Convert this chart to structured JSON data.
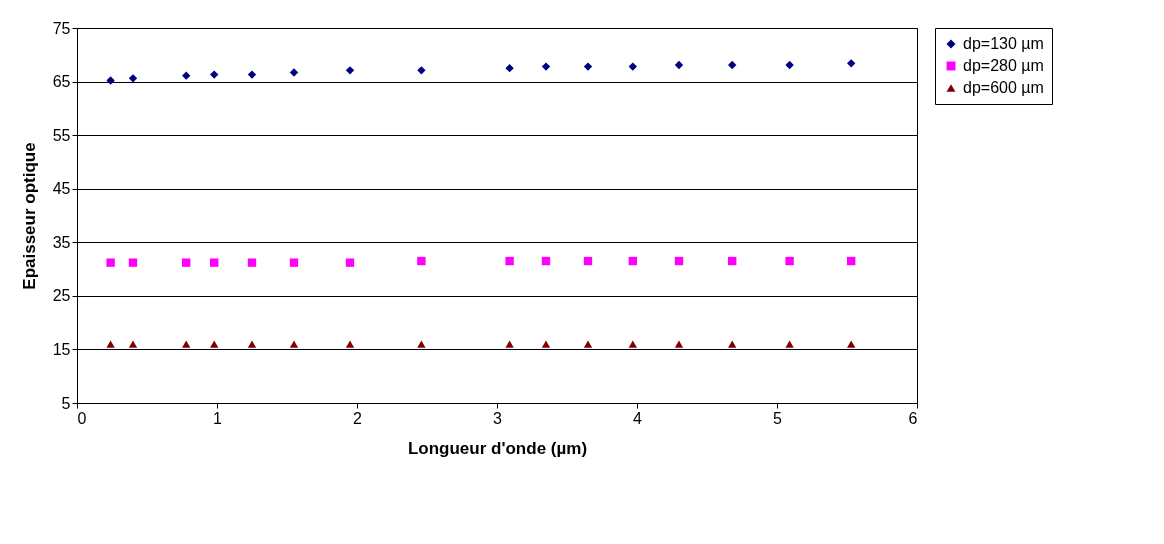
{
  "chart_data": {
    "type": "scatter",
    "xlabel": "Longueur d'onde (µm)",
    "ylabel": "Epaisseur optique",
    "x": [
      0.24,
      0.4,
      0.78,
      0.98,
      1.25,
      1.55,
      1.95,
      2.46,
      3.09,
      3.35,
      3.65,
      3.97,
      4.3,
      4.68,
      5.09,
      5.53
    ],
    "series": [
      {
        "name": "dp=130 µm",
        "color": "#000080",
        "marker": "diamond",
        "values": [
          65.2,
          65.6,
          66.1,
          66.3,
          66.3,
          66.7,
          67.1,
          67.1,
          67.5,
          67.8,
          67.8,
          67.8,
          68.1,
          68.1,
          68.1,
          68.4
        ]
      },
      {
        "name": "dp=280 µm",
        "color": "#ff00ff",
        "marker": "square",
        "values": [
          31.2,
          31.2,
          31.2,
          31.2,
          31.2,
          31.2,
          31.2,
          31.5,
          31.5,
          31.5,
          31.5,
          31.5,
          31.5,
          31.5,
          31.5,
          31.5
        ]
      },
      {
        "name": "dp=600 µm",
        "color": "#800000",
        "marker": "triangle",
        "values": [
          16,
          16,
          16,
          16,
          16,
          16,
          16,
          16,
          16,
          16,
          16,
          16,
          16,
          16,
          16,
          16
        ]
      }
    ],
    "xlim": [
      0,
      6
    ],
    "xticks": [
      0,
      1,
      2,
      3,
      4,
      5,
      6
    ],
    "ylim": [
      5,
      75
    ],
    "yticks": [
      5,
      15,
      25,
      35,
      45,
      55,
      65,
      75
    ],
    "grid": "y",
    "legend": "right"
  }
}
